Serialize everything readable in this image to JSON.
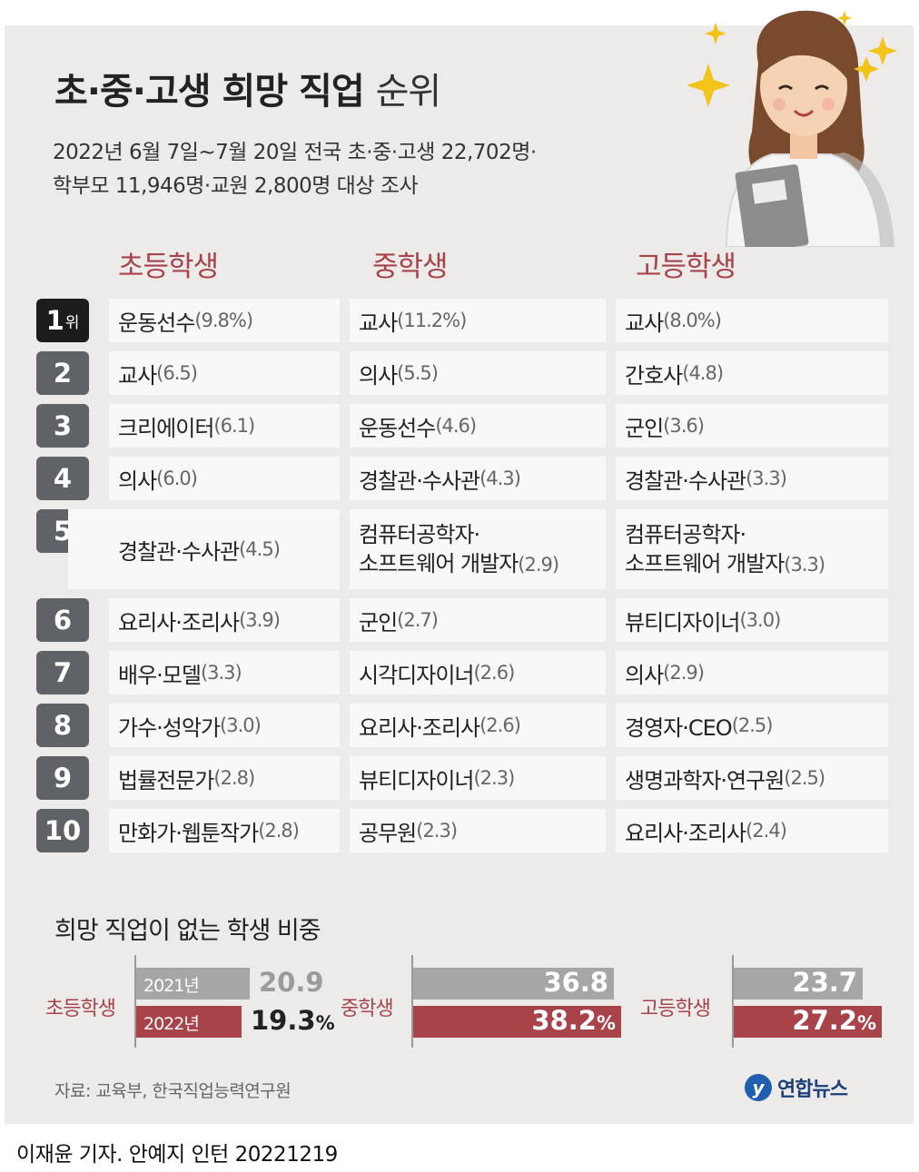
{
  "title_main": "초·중·고생 희망 직업",
  "title_light": "순위",
  "subtitle_line1": "2022년 6월 7일~7월 20일 전국 초·중·고생 22,702명·",
  "subtitle_line2": "학부모 11,946명·교원 2,800명 대상 조사",
  "columns": [
    "초등학생",
    "중학생",
    "고등학생"
  ],
  "rank_suffix": "위",
  "chart_data": [
    {
      "type": "table",
      "columns": [
        "순위",
        "초등학생",
        "중학생",
        "고등학생"
      ],
      "rows": [
        {
          "rank": "1",
          "elem": {
            "job": "운동선수",
            "pct": "(9.8%)"
          },
          "mid": {
            "job": "교사",
            "pct": "(11.2%)"
          },
          "high": {
            "job": "교사",
            "pct": "(8.0%)"
          }
        },
        {
          "rank": "2",
          "elem": {
            "job": "교사",
            "pct": "(6.5)"
          },
          "mid": {
            "job": "의사",
            "pct": "(5.5)"
          },
          "high": {
            "job": "간호사",
            "pct": "(4.8)"
          }
        },
        {
          "rank": "3",
          "elem": {
            "job": "크리에이터",
            "pct": "(6.1)"
          },
          "mid": {
            "job": "운동선수",
            "pct": "(4.6)"
          },
          "high": {
            "job": "군인",
            "pct": "(3.6)"
          }
        },
        {
          "rank": "4",
          "elem": {
            "job": "의사",
            "pct": "(6.0)"
          },
          "mid": {
            "job": "경찰관·수사관",
            "pct": "(4.3)"
          },
          "high": {
            "job": "경찰관·수사관",
            "pct": "(3.3)"
          }
        },
        {
          "rank": "5",
          "elem": {
            "job": "경찰관·수사관",
            "pct": "(4.5)"
          },
          "mid": {
            "job_line1": "컴퓨터공학자·",
            "job_line2": "소프트웨어 개발자",
            "pct": "(2.9)"
          },
          "high": {
            "job_line1": "컴퓨터공학자·",
            "job_line2": "소프트웨어 개발자",
            "pct": "(3.3)"
          }
        },
        {
          "rank": "6",
          "elem": {
            "job": "요리사·조리사",
            "pct": "(3.9)"
          },
          "mid": {
            "job": "군인",
            "pct": "(2.7)"
          },
          "high": {
            "job": "뷰티디자이너",
            "pct": "(3.0)"
          }
        },
        {
          "rank": "7",
          "elem": {
            "job": "배우·모델",
            "pct": "(3.3)"
          },
          "mid": {
            "job": "시각디자이너",
            "pct": "(2.6)"
          },
          "high": {
            "job": "의사",
            "pct": "(2.9)"
          }
        },
        {
          "rank": "8",
          "elem": {
            "job": "가수·성악가",
            "pct": "(3.0)"
          },
          "mid": {
            "job": "요리사·조리사",
            "pct": "(2.6)"
          },
          "high": {
            "job": "경영자·CEO",
            "pct": "(2.5)"
          }
        },
        {
          "rank": "9",
          "elem": {
            "job": "법률전문가",
            "pct": "(2.8)"
          },
          "mid": {
            "job": "뷰티디자이너",
            "pct": "(2.3)"
          },
          "high": {
            "job": "생명과학자·연구원",
            "pct": "(2.5)"
          }
        },
        {
          "rank": "10",
          "elem": {
            "job": "만화가·웹툰작가",
            "pct": "(2.8)"
          },
          "mid": {
            "job": "공무원",
            "pct": "(2.3)"
          },
          "high": {
            "job": "요리사·조리사",
            "pct": "(2.4)"
          }
        }
      ]
    },
    {
      "type": "bar",
      "orientation": "horizontal",
      "title": "희망 직업이 없는 학생 비중",
      "categories": [
        "초등학생",
        "중학생",
        "고등학생"
      ],
      "series": [
        {
          "name": "2021년",
          "values": [
            20.9,
            36.8,
            23.7
          ],
          "labels": [
            "20.9",
            "36.8",
            "23.7"
          ],
          "color": "#a6a6a6"
        },
        {
          "name": "2022년",
          "values": [
            19.3,
            38.2,
            27.2
          ],
          "labels": [
            "19.3",
            "38.2",
            "27.2"
          ],
          "color": "#a8434a"
        }
      ],
      "unit": "%"
    }
  ],
  "source": "자료: 교육부, 한국직업능력연구원",
  "logo_text": "연합뉴스",
  "credit": "이재윤 기자. 안예지 인턴  20221219"
}
